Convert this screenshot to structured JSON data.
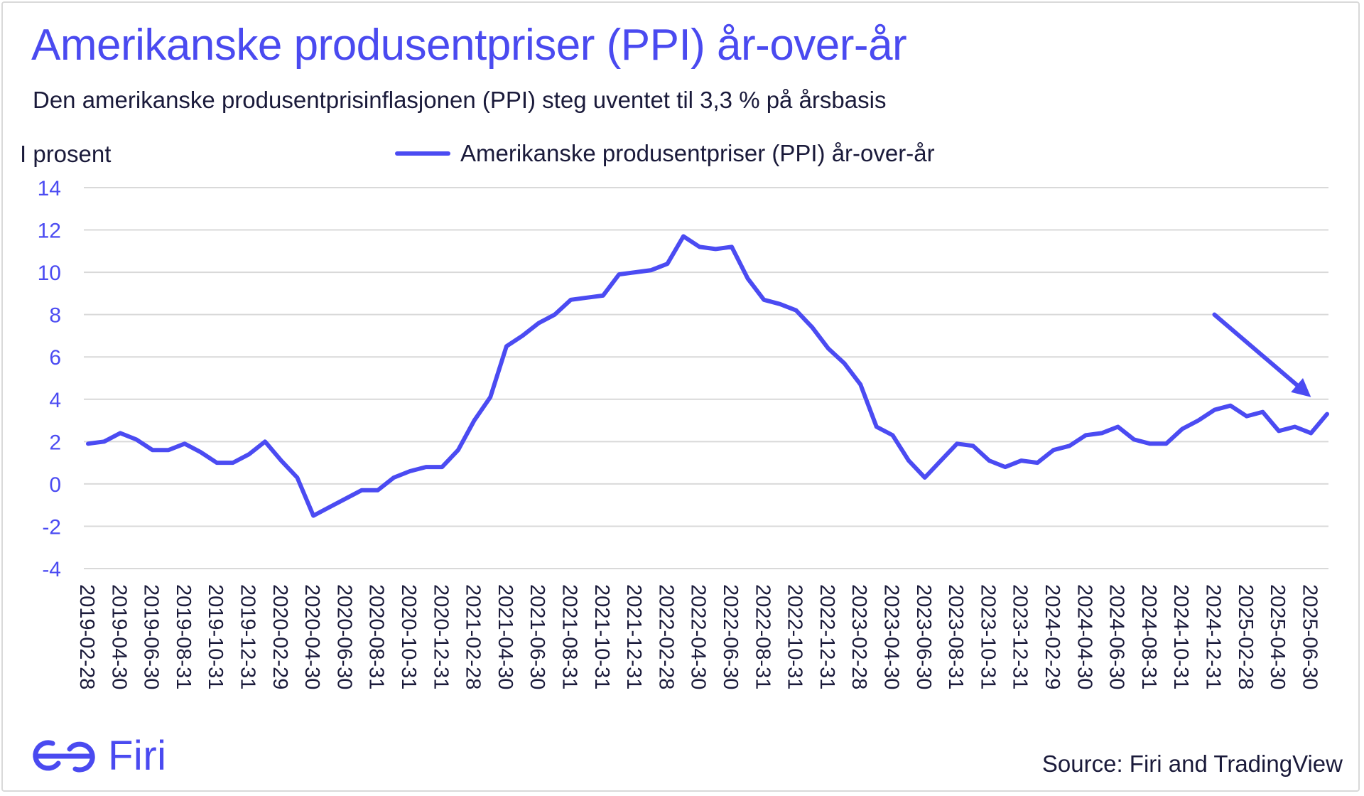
{
  "header": {
    "title": "Amerikanske produsentpriser (PPI) år-over-år",
    "subtitle": "Den amerikanske produsentprisinflasjonen (PPI) steg uventet til 3,3 % på årsbasis"
  },
  "footer": {
    "brand": "Firi",
    "source": "Source: Firi and TradingView"
  },
  "colors": {
    "line": "#4b4bf2",
    "text": "#1a1a3a",
    "title": "#4a4af0",
    "grid": "#d9d9d9"
  },
  "chart_data": {
    "type": "line",
    "ylabel": "I prosent",
    "xlabel": "",
    "ylim": [
      -4,
      14
    ],
    "yticks": [
      -4,
      -2,
      0,
      2,
      4,
      6,
      8,
      10,
      12,
      14
    ],
    "grid": "horizontal",
    "legend": "top-center",
    "x_tick_labels": [
      "2019-02-28",
      "2019-04-30",
      "2019-06-30",
      "2019-08-31",
      "2019-10-31",
      "2019-12-31",
      "2020-02-29",
      "2020-04-30",
      "2020-06-30",
      "2020-08-31",
      "2020-10-31",
      "2020-12-31",
      "2021-02-28",
      "2021-04-30",
      "2021-06-30",
      "2021-08-31",
      "2021-10-31",
      "2021-12-31",
      "2022-02-28",
      "2022-04-30",
      "2022-06-30",
      "2022-08-31",
      "2022-10-31",
      "2022-12-31",
      "2023-02-28",
      "2023-04-30",
      "2023-06-30",
      "2023-08-31",
      "2023-10-31",
      "2023-12-31",
      "2024-02-29",
      "2024-04-30",
      "2024-06-30",
      "2024-08-31",
      "2024-10-31",
      "2024-12-31",
      "2025-02-28",
      "2025-04-30",
      "2025-06-30"
    ],
    "annotation": {
      "type": "arrow",
      "from": [
        "2024-12-31",
        8.0
      ],
      "to": [
        "2025-06-30",
        4.1
      ]
    },
    "series": [
      {
        "name": "Amerikanske produsentpriser (PPI) år-over-år",
        "x": [
          "2019-02-28",
          "2019-03-31",
          "2019-04-30",
          "2019-05-31",
          "2019-06-30",
          "2019-07-31",
          "2019-08-31",
          "2019-09-30",
          "2019-10-31",
          "2019-11-30",
          "2019-12-31",
          "2020-01-31",
          "2020-02-29",
          "2020-03-31",
          "2020-04-30",
          "2020-05-31",
          "2020-06-30",
          "2020-07-31",
          "2020-08-31",
          "2020-09-30",
          "2020-10-31",
          "2020-11-30",
          "2020-12-31",
          "2021-01-31",
          "2021-02-28",
          "2021-03-31",
          "2021-04-30",
          "2021-05-31",
          "2021-06-30",
          "2021-07-31",
          "2021-08-31",
          "2021-09-30",
          "2021-10-31",
          "2021-11-30",
          "2021-12-31",
          "2022-01-31",
          "2022-02-28",
          "2022-03-31",
          "2022-04-30",
          "2022-05-31",
          "2022-06-30",
          "2022-07-31",
          "2022-08-31",
          "2022-09-30",
          "2022-10-31",
          "2022-11-30",
          "2022-12-31",
          "2023-01-31",
          "2023-02-28",
          "2023-03-31",
          "2023-04-30",
          "2023-05-31",
          "2023-06-30",
          "2023-07-31",
          "2023-08-31",
          "2023-09-30",
          "2023-10-31",
          "2023-11-30",
          "2023-12-31",
          "2024-01-31",
          "2024-02-29",
          "2024-03-31",
          "2024-04-30",
          "2024-05-31",
          "2024-06-30",
          "2024-07-31",
          "2024-08-31",
          "2024-09-30",
          "2024-10-31",
          "2024-11-30",
          "2024-12-31",
          "2025-01-31",
          "2025-02-28",
          "2025-03-31",
          "2025-04-30",
          "2025-05-31",
          "2025-06-30",
          "2025-07-31"
        ],
        "values": [
          1.9,
          2.0,
          2.4,
          2.1,
          1.6,
          1.6,
          1.9,
          1.5,
          1.0,
          1.0,
          1.4,
          2.0,
          1.1,
          0.3,
          -1.5,
          -1.1,
          -0.7,
          -0.3,
          -0.3,
          0.3,
          0.6,
          0.8,
          0.8,
          1.6,
          3.0,
          4.1,
          6.5,
          7.0,
          7.6,
          8.0,
          8.7,
          8.8,
          8.9,
          9.9,
          10.0,
          10.1,
          10.4,
          11.7,
          11.2,
          11.1,
          11.2,
          9.7,
          8.7,
          8.5,
          8.2,
          7.4,
          6.4,
          5.7,
          4.7,
          2.7,
          2.3,
          1.1,
          0.3,
          1.1,
          1.9,
          1.8,
          1.1,
          0.8,
          1.1,
          1.0,
          1.6,
          1.8,
          2.3,
          2.4,
          2.7,
          2.1,
          1.9,
          1.9,
          2.6,
          3.0,
          3.5,
          3.7,
          3.2,
          3.4,
          2.5,
          2.7,
          2.4,
          3.3
        ]
      }
    ]
  }
}
